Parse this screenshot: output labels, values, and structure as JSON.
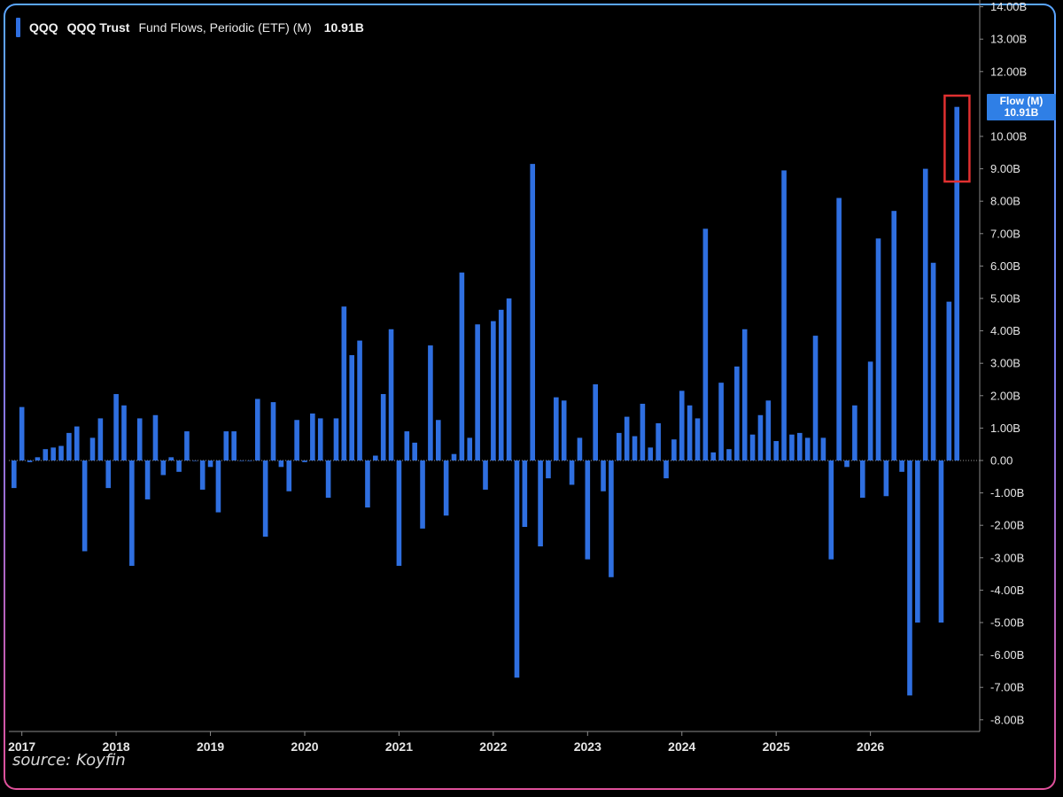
{
  "legend": {
    "ticker": "QQQ",
    "name": "QQQ Trust",
    "metric": "Fund Flows, Periodic (ETF) (M)",
    "last_value": "10.91B"
  },
  "source": "source: Koyfin",
  "last_tag": {
    "label": "Flow (M)",
    "value": "10.91B"
  },
  "colors": {
    "bar": "#2f6fe0",
    "highlight": "#e03030",
    "tag": "#2f7fe6",
    "axis": "#8a8a8a"
  },
  "chart_data": {
    "type": "bar",
    "ylim": [
      -8.5,
      14.2
    ],
    "yticks": [
      {
        "v": 14,
        "label": "14.00B"
      },
      {
        "v": 13,
        "label": "13.00B"
      },
      {
        "v": 12,
        "label": "12.00B"
      },
      {
        "v": 10,
        "label": "10.00B"
      },
      {
        "v": 9,
        "label": "9.00B"
      },
      {
        "v": 8,
        "label": "8.00B"
      },
      {
        "v": 7,
        "label": "7.00B"
      },
      {
        "v": 6,
        "label": "6.00B"
      },
      {
        "v": 5,
        "label": "5.00B"
      },
      {
        "v": 4,
        "label": "4.00B"
      },
      {
        "v": 3,
        "label": "3.00B"
      },
      {
        "v": 2,
        "label": "2.00B"
      },
      {
        "v": 1,
        "label": "1.00B"
      },
      {
        "v": 0,
        "label": "0.00"
      },
      {
        "v": -1,
        "label": "-1.00B"
      },
      {
        "v": -2,
        "label": "-2.00B"
      },
      {
        "v": -3,
        "label": "-3.00B"
      },
      {
        "v": -4,
        "label": "-4.00B"
      },
      {
        "v": -5,
        "label": "-5.00B"
      },
      {
        "v": -6,
        "label": "-6.00B"
      },
      {
        "v": -7,
        "label": "-7.00B"
      },
      {
        "v": -8,
        "label": "-8.00B"
      }
    ],
    "year_labels": [
      "2017",
      "2018",
      "2019",
      "2020",
      "2021",
      "2022",
      "2023",
      "2024",
      "2025",
      "2026"
    ],
    "x_start": "2016-12",
    "values": [
      -0.85,
      1.65,
      -0.05,
      0.1,
      0.35,
      0.4,
      0.45,
      0.85,
      1.05,
      -2.8,
      0.7,
      1.3,
      -0.85,
      2.05,
      1.7,
      -3.25,
      1.3,
      -1.2,
      1.4,
      -0.45,
      0.1,
      -0.35,
      0.9,
      0,
      -0.9,
      -0.2,
      -1.6,
      0.9,
      0.9,
      0,
      0,
      1.9,
      -2.35,
      1.8,
      -0.2,
      -0.95,
      1.25,
      -0.05,
      1.45,
      1.3,
      -1.15,
      1.3,
      4.75,
      3.25,
      3.7,
      -1.45,
      0.15,
      2.05,
      4.05,
      -3.25,
      0.9,
      0.55,
      -2.1,
      3.55,
      1.25,
      -1.7,
      0.2,
      5.8,
      0.7,
      4.2,
      -0.9,
      4.3,
      4.65,
      5.0,
      -6.7,
      -2.05,
      9.15,
      -2.65,
      -0.55,
      1.95,
      1.85,
      -0.75,
      0.7,
      -3.05,
      2.35,
      -0.95,
      -3.6,
      0.85,
      1.35,
      0.75,
      1.75,
      0.4,
      1.15,
      -0.55,
      0.65,
      2.15,
      1.7,
      1.3,
      7.15,
      0.25,
      2.4,
      0.35,
      2.9,
      4.05,
      0.8,
      1.4,
      1.85,
      0.6,
      8.95,
      0.8,
      0.85,
      0.7,
      3.85,
      0.7,
      -3.05,
      8.1,
      -0.2,
      1.7,
      -1.15,
      3.05,
      6.85,
      -1.1,
      7.7,
      -0.35,
      -7.25,
      -5.0,
      9.0,
      6.1,
      -5.0,
      4.9,
      10.91
    ]
  }
}
